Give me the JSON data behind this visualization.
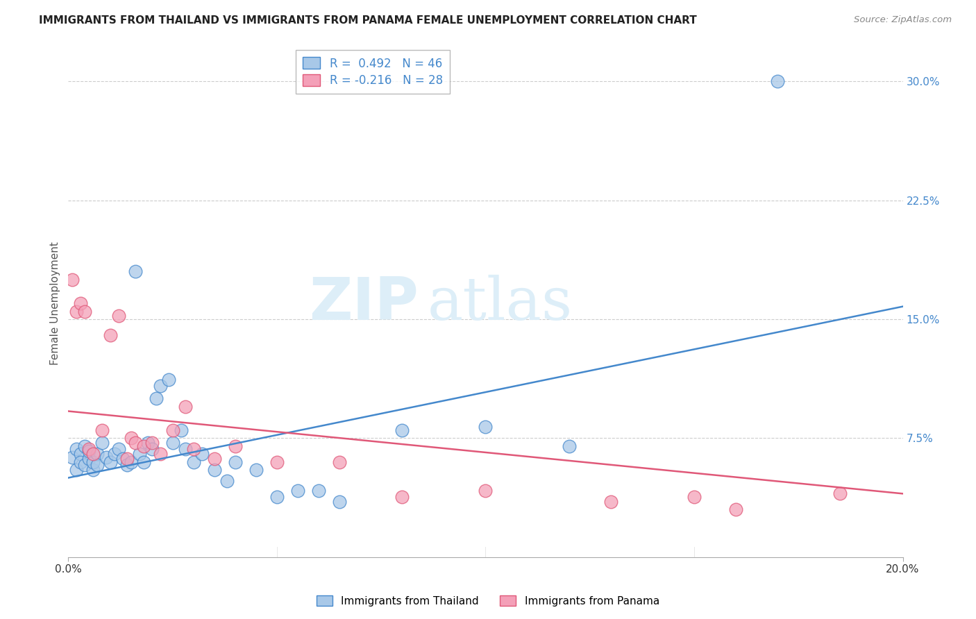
{
  "title": "IMMIGRANTS FROM THAILAND VS IMMIGRANTS FROM PANAMA FEMALE UNEMPLOYMENT CORRELATION CHART",
  "source": "Source: ZipAtlas.com",
  "ylabel": "Female Unemployment",
  "right_yticks": [
    "30.0%",
    "22.5%",
    "15.0%",
    "7.5%"
  ],
  "right_ytick_vals": [
    0.3,
    0.225,
    0.15,
    0.075
  ],
  "xlim": [
    0.0,
    0.2
  ],
  "ylim": [
    0.0,
    0.32
  ],
  "legend_r1_left": "R =  0.492",
  "legend_r1_right": "N = 46",
  "legend_r2_left": "R = -0.216",
  "legend_r2_right": "N = 28",
  "color_thailand": "#a8c8e8",
  "color_panama": "#f4a0b8",
  "color_line_thailand": "#4488cc",
  "color_line_panama": "#e05878",
  "watermark_zip": "ZIP",
  "watermark_atlas": "atlas",
  "thailand_x": [
    0.001,
    0.002,
    0.002,
    0.003,
    0.003,
    0.004,
    0.004,
    0.005,
    0.005,
    0.006,
    0.006,
    0.007,
    0.007,
    0.008,
    0.009,
    0.01,
    0.011,
    0.012,
    0.013,
    0.014,
    0.015,
    0.016,
    0.017,
    0.018,
    0.019,
    0.02,
    0.021,
    0.022,
    0.024,
    0.025,
    0.027,
    0.028,
    0.03,
    0.032,
    0.035,
    0.038,
    0.04,
    0.045,
    0.05,
    0.055,
    0.06,
    0.065,
    0.08,
    0.1,
    0.12,
    0.17
  ],
  "thailand_y": [
    0.063,
    0.068,
    0.055,
    0.065,
    0.06,
    0.07,
    0.058,
    0.062,
    0.067,
    0.055,
    0.06,
    0.065,
    0.058,
    0.072,
    0.063,
    0.06,
    0.065,
    0.068,
    0.062,
    0.058,
    0.06,
    0.18,
    0.065,
    0.06,
    0.072,
    0.068,
    0.1,
    0.108,
    0.112,
    0.072,
    0.08,
    0.068,
    0.06,
    0.065,
    0.055,
    0.048,
    0.06,
    0.055,
    0.038,
    0.042,
    0.042,
    0.035,
    0.08,
    0.082,
    0.07,
    0.3
  ],
  "panama_x": [
    0.001,
    0.002,
    0.003,
    0.004,
    0.005,
    0.006,
    0.008,
    0.01,
    0.012,
    0.014,
    0.015,
    0.016,
    0.018,
    0.02,
    0.022,
    0.025,
    0.028,
    0.03,
    0.035,
    0.04,
    0.05,
    0.065,
    0.08,
    0.1,
    0.13,
    0.15,
    0.16,
    0.185
  ],
  "panama_y": [
    0.175,
    0.155,
    0.16,
    0.155,
    0.068,
    0.065,
    0.08,
    0.14,
    0.152,
    0.062,
    0.075,
    0.072,
    0.07,
    0.072,
    0.065,
    0.08,
    0.095,
    0.068,
    0.062,
    0.07,
    0.06,
    0.06,
    0.038,
    0.042,
    0.035,
    0.038,
    0.03,
    0.04
  ],
  "thailand_line_x": [
    0.0,
    0.2
  ],
  "thailand_line_y": [
    0.05,
    0.158
  ],
  "panama_line_x": [
    0.0,
    0.2
  ],
  "panama_line_y": [
    0.092,
    0.04
  ],
  "xtick_positions": [
    0.0,
    0.2
  ],
  "xtick_labels": [
    "0.0%",
    "20.0%"
  ]
}
